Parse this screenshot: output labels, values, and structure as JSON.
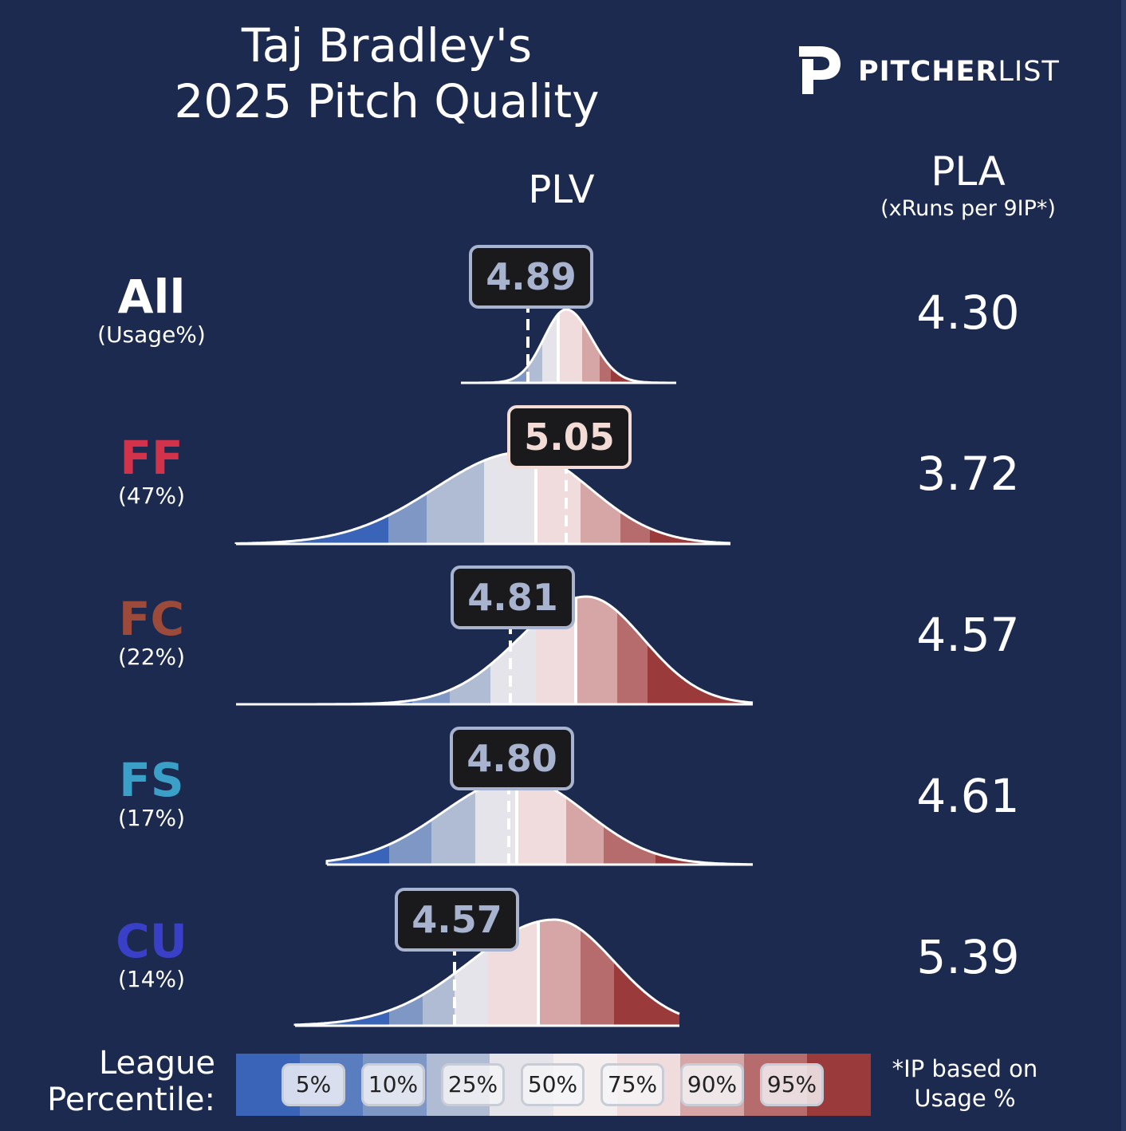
{
  "title": {
    "line1": "Taj Bradley's",
    "line2": "2025 Pitch Quality"
  },
  "logo": {
    "bold": "PITCHER",
    "light": "LIST",
    "icon": "pitcherlist-p-logo"
  },
  "headers": {
    "plv": "PLV",
    "pla": "PLA",
    "pla_sub": "(xRuns per 9IP*)"
  },
  "colors": {
    "background": "#1c2a4f",
    "FF": "#d2334a",
    "FC": "#9c4a3a",
    "FS": "#3aa0c8",
    "CU": "#3a3fc8",
    "All": "#ffffff"
  },
  "chart_data": {
    "type": "area",
    "description_units": "PLV",
    "percentile_colors": [
      "#3a64b8",
      "#7f97c4",
      "#b0bbd4",
      "#e4e4ea",
      "#f0dcdc",
      "#d6a5a5",
      "#b66c6c",
      "#9a3a3a"
    ],
    "series": [
      {
        "name": "All",
        "usage": "(Usage%)",
        "plv": "4.89",
        "pla": "4.30"
      },
      {
        "name": "FF",
        "usage": "(47%)",
        "plv": "5.05",
        "pla": "3.72"
      },
      {
        "name": "FC",
        "usage": "(22%)",
        "plv": "4.81",
        "pla": "4.57"
      },
      {
        "name": "FS",
        "usage": "(17%)",
        "plv": "4.80",
        "pla": "4.61"
      },
      {
        "name": "CU",
        "usage": "(14%)",
        "plv": "4.57",
        "pla": "5.39"
      }
    ]
  },
  "legend": {
    "label_line1": "League",
    "label_line2": "Percentile:",
    "ticks": [
      "5%",
      "10%",
      "25%",
      "50%",
      "75%",
      "90%",
      "95%"
    ],
    "colors": [
      "#3a64b8",
      "#5a7dc0",
      "#7f97c4",
      "#b0bbd4",
      "#e4e4ea",
      "#f4eeee",
      "#f0dcdc",
      "#d6a5a5",
      "#b66c6c",
      "#9a3a3a"
    ]
  },
  "footnote": {
    "line1": "*IP based on",
    "line2": "Usage %"
  }
}
